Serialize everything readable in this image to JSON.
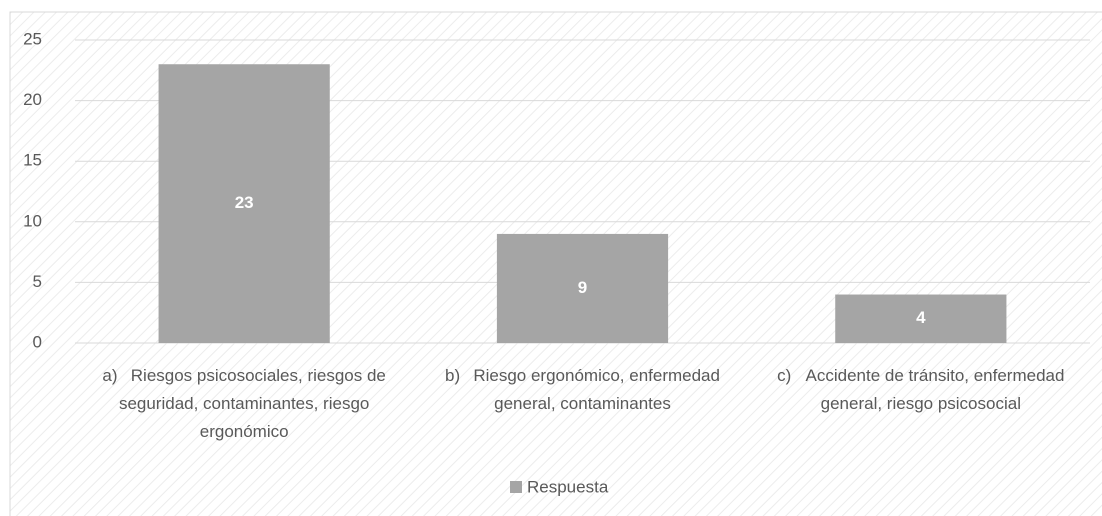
{
  "chart_data": {
    "type": "bar",
    "categories": [
      "a)\tRiesgos psicosociales, riesgos de seguridad, contaminantes, riesgo ergonómico",
      "b)\tRiesgo ergonómico, enfermedad general, contaminantes",
      "c)\tAccidente de tránsito, enfermedad general, riesgo psicosocial"
    ],
    "series": [
      {
        "name": "Respuesta",
        "color": "#a5a5a5",
        "values": [
          23,
          9,
          4
        ]
      }
    ],
    "ylim": [
      0,
      25
    ],
    "yticks": [
      0,
      5,
      10,
      15,
      20,
      25
    ],
    "grid": true,
    "legend": "bottom"
  }
}
